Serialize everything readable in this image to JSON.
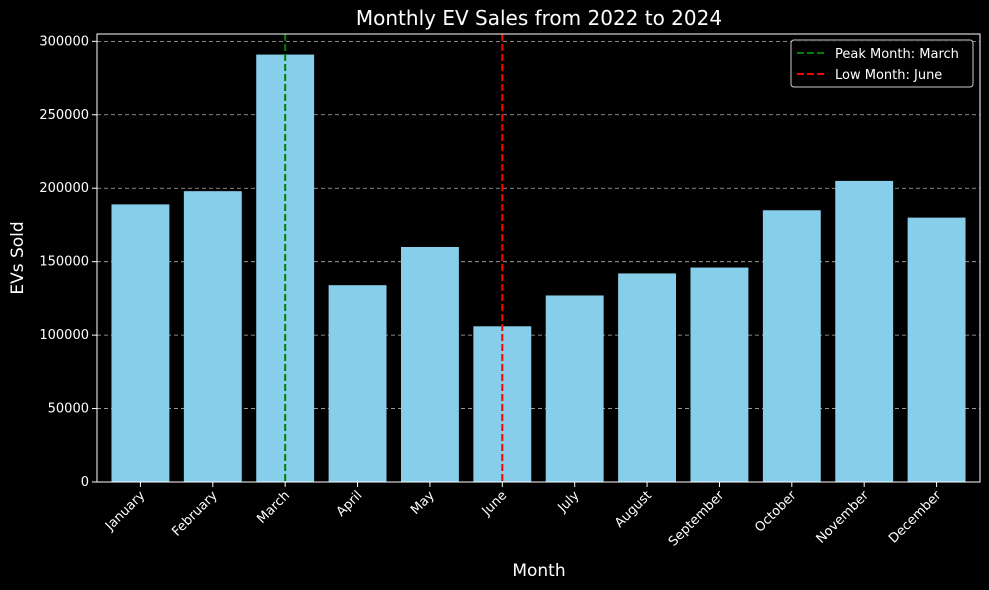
{
  "chart_data": {
    "type": "bar",
    "title": "Monthly EV Sales from 2022 to 2024",
    "xlabel": "Month",
    "ylabel": "EVs Sold",
    "categories": [
      "January",
      "February",
      "March",
      "April",
      "May",
      "June",
      "July",
      "August",
      "September",
      "October",
      "November",
      "December"
    ],
    "values": [
      189000,
      198000,
      291000,
      134000,
      160000,
      106000,
      127000,
      142000,
      146000,
      185000,
      205000,
      180000
    ],
    "ylim": [
      0,
      305000
    ],
    "yticks": [
      0,
      50000,
      100000,
      150000,
      200000,
      250000,
      300000
    ],
    "grid": "y-dashed",
    "legend_position": "top-right",
    "reference_lines": [
      {
        "label": "Peak Month: March",
        "category": "March",
        "color": "#008000"
      },
      {
        "label": "Low Month: June",
        "category": "June",
        "color": "#ff0000"
      }
    ],
    "bar_color": "#87ceeb",
    "background": "#000000",
    "text_color": "#ffffff"
  }
}
